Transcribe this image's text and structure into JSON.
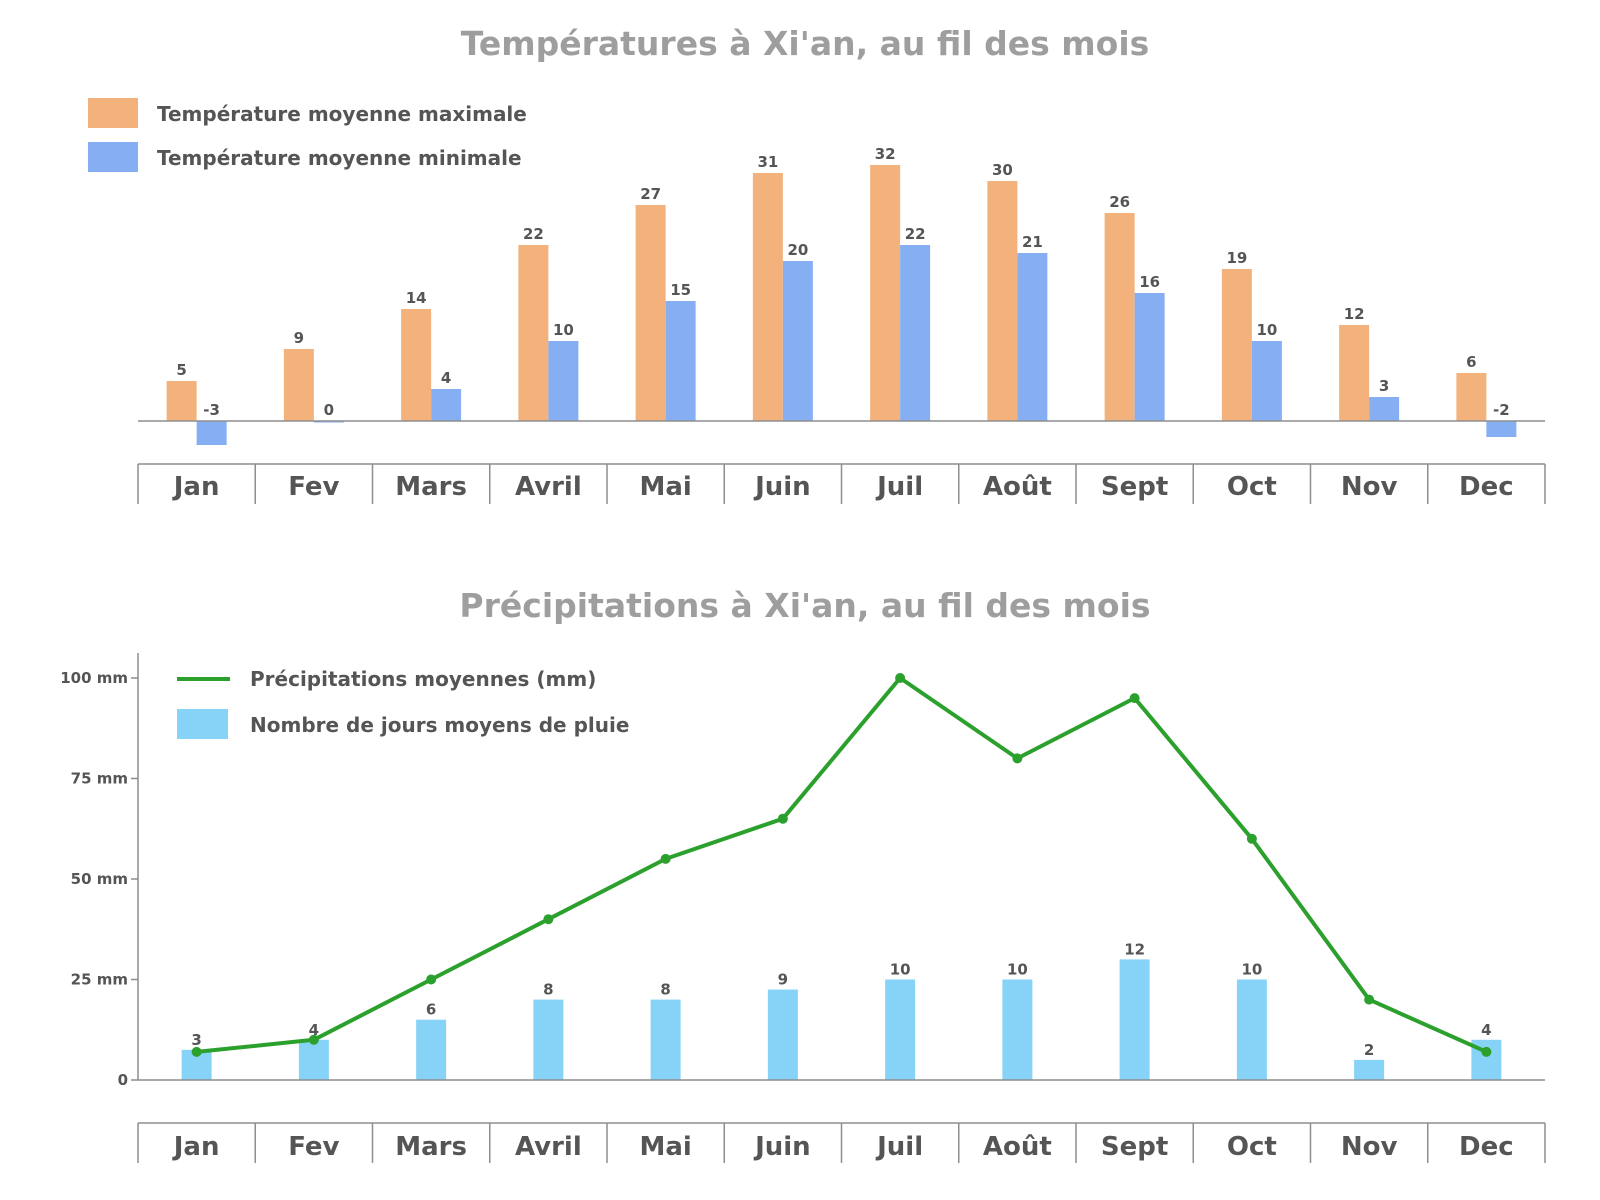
{
  "chart_data": [
    {
      "type": "bar",
      "title": "Températures à Xi'an, au fil des mois",
      "categories": [
        "Jan",
        "Fev",
        "Mars",
        "Avril",
        "Mai",
        "Juin",
        "Juil",
        "Août",
        "Sept",
        "Oct",
        "Nov",
        "Dec"
      ],
      "series": [
        {
          "name": "Température moyenne maximale",
          "color": "#f3b27c",
          "values": [
            5,
            9,
            14,
            22,
            27,
            31,
            32,
            30,
            26,
            19,
            12,
            6
          ]
        },
        {
          "name": "Température moyenne minimale",
          "color": "#86aef3",
          "values": [
            -3,
            0,
            4,
            10,
            15,
            20,
            22,
            21,
            16,
            10,
            3,
            -2
          ]
        }
      ],
      "grid": false,
      "legend_position": "top-left"
    },
    {
      "type": "line",
      "title": "Précipitations à Xi'an, au fil des mois",
      "categories": [
        "Jan",
        "Fev",
        "Mars",
        "Avril",
        "Mai",
        "Juin",
        "Juil",
        "Août",
        "Sept",
        "Oct",
        "Nov",
        "Dec"
      ],
      "ylim": [
        0,
        100
      ],
      "yticks": [
        "0",
        "25 mm",
        "50 mm",
        "75 mm",
        "100 mm"
      ],
      "series": [
        {
          "name": "Précipitations moyennes (mm)",
          "type": "line",
          "color": "#2ca02c",
          "values": [
            7,
            10,
            25,
            40,
            55,
            65,
            100,
            80,
            95,
            60,
            20,
            7
          ]
        },
        {
          "name": "Nombre de jours moyens de pluie",
          "type": "bar",
          "color": "#86d3f7",
          "values": [
            3,
            4,
            6,
            8,
            8,
            9,
            10,
            10,
            12,
            10,
            2,
            4
          ]
        }
      ],
      "grid": false,
      "legend_position": "top-left"
    }
  ]
}
